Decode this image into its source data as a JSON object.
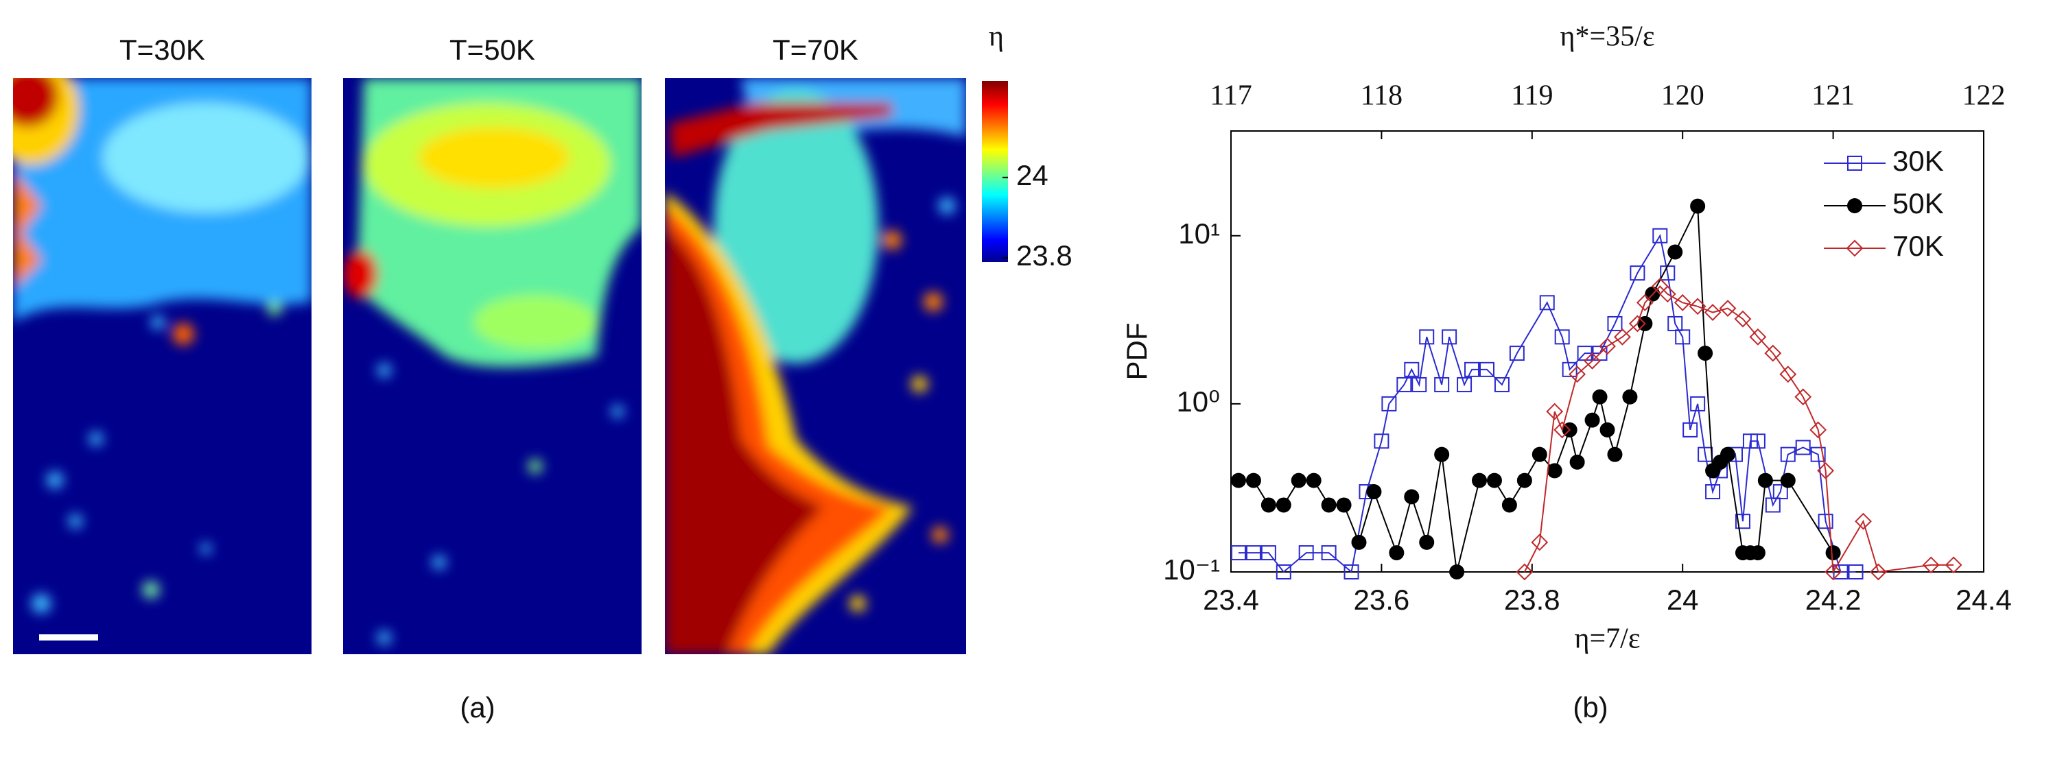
{
  "chart_data": [
    {
      "type": "heatmap",
      "panels": [
        "T=30K",
        "T=50K",
        "T=70K"
      ],
      "colorbar_label": "η",
      "clim": [
        23.79,
        24.24
      ],
      "cticks": [
        23.8,
        24
      ],
      "caption": "(a)"
    },
    {
      "type": "line",
      "x2label": "η*=35/ε",
      "xlabel": "η=7/ε",
      "ylabel": "PDF",
      "caption": "(b)",
      "xlim": [
        23.4,
        24.4
      ],
      "xticks": [
        23.4,
        23.6,
        23.8,
        24,
        24.2,
        24.4
      ],
      "x2lim": [
        117,
        122
      ],
      "x2ticks": [
        117,
        118,
        119,
        120,
        121,
        122
      ],
      "yscale": "log",
      "ylim": [
        0.1,
        42
      ],
      "yticks": [
        {
          "value": 0.1,
          "label": "10⁻¹"
        },
        {
          "value": 1,
          "label": "10⁰"
        },
        {
          "value": 10,
          "label": "10¹"
        }
      ],
      "legend": "upper right",
      "series": [
        {
          "name": "30K",
          "color": "#2a2ad0",
          "marker": "square",
          "x": [
            23.41,
            23.43,
            23.45,
            23.47,
            23.5,
            23.53,
            23.56,
            23.58,
            23.6,
            23.61,
            23.63,
            23.64,
            23.65,
            23.66,
            23.68,
            23.69,
            23.71,
            23.72,
            23.74,
            23.76,
            23.78,
            23.82,
            23.84,
            23.85,
            23.87,
            23.89,
            23.91,
            23.94,
            23.97,
            23.98,
            23.99,
            24.0,
            24.01,
            24.02,
            24.03,
            24.04,
            24.05,
            24.07,
            24.08,
            24.09,
            24.1,
            24.12,
            24.13,
            24.14,
            24.16,
            24.18,
            24.19,
            24.21,
            24.23
          ],
          "values": [
            0.13,
            0.13,
            0.13,
            0.1,
            0.13,
            0.13,
            0.1,
            0.3,
            0.6,
            1.0,
            1.3,
            1.6,
            1.3,
            2.5,
            1.3,
            2.5,
            1.3,
            1.6,
            1.6,
            1.3,
            2.0,
            4.0,
            2.5,
            1.6,
            2.0,
            2.0,
            3.0,
            6.0,
            10,
            6.0,
            3.0,
            2.5,
            0.7,
            1.0,
            0.5,
            0.3,
            0.4,
            0.5,
            0.2,
            0.6,
            0.6,
            0.25,
            0.3,
            0.5,
            0.55,
            0.5,
            0.2,
            0.1,
            0.1
          ]
        },
        {
          "name": "50K",
          "color": "#000000",
          "marker": "circle",
          "x": [
            23.41,
            23.43,
            23.45,
            23.47,
            23.49,
            23.51,
            23.53,
            23.55,
            23.57,
            23.59,
            23.62,
            23.64,
            23.66,
            23.68,
            23.7,
            23.73,
            23.75,
            23.77,
            23.79,
            23.81,
            23.83,
            23.85,
            23.86,
            23.88,
            23.89,
            23.9,
            23.91,
            23.93,
            23.95,
            23.96,
            23.99,
            24.02,
            24.03,
            24.04,
            24.05,
            24.06,
            24.08,
            24.09,
            24.1,
            24.11,
            24.14,
            24.2
          ],
          "values": [
            0.35,
            0.35,
            0.25,
            0.25,
            0.35,
            0.35,
            0.25,
            0.25,
            0.15,
            0.3,
            0.13,
            0.28,
            0.15,
            0.5,
            0.1,
            0.35,
            0.35,
            0.25,
            0.35,
            0.5,
            0.4,
            0.7,
            0.45,
            0.8,
            1.1,
            0.7,
            0.5,
            1.1,
            3,
            4.5,
            8,
            15,
            2,
            0.4,
            0.45,
            0.5,
            0.13,
            0.13,
            0.13,
            0.35,
            0.35,
            0.13
          ]
        },
        {
          "name": "70K",
          "color": "#c0282a",
          "marker": "diamond",
          "x": [
            23.79,
            23.81,
            23.83,
            23.84,
            23.86,
            23.88,
            23.9,
            23.92,
            23.94,
            23.95,
            23.97,
            23.98,
            24.0,
            24.02,
            24.04,
            24.06,
            24.08,
            24.1,
            24.12,
            24.14,
            24.16,
            24.18,
            24.19,
            24.2,
            24.24,
            24.26,
            24.33,
            24.36
          ],
          "values": [
            0.1,
            0.15,
            0.9,
            0.7,
            1.5,
            1.8,
            2.2,
            2.5,
            3.0,
            4.0,
            5.0,
            4.5,
            4.0,
            3.8,
            3.5,
            3.7,
            3.2,
            2.5,
            2.0,
            1.5,
            1.1,
            0.7,
            0.4,
            0.1,
            0.2,
            0.1,
            0.11,
            0.11
          ]
        }
      ]
    }
  ]
}
